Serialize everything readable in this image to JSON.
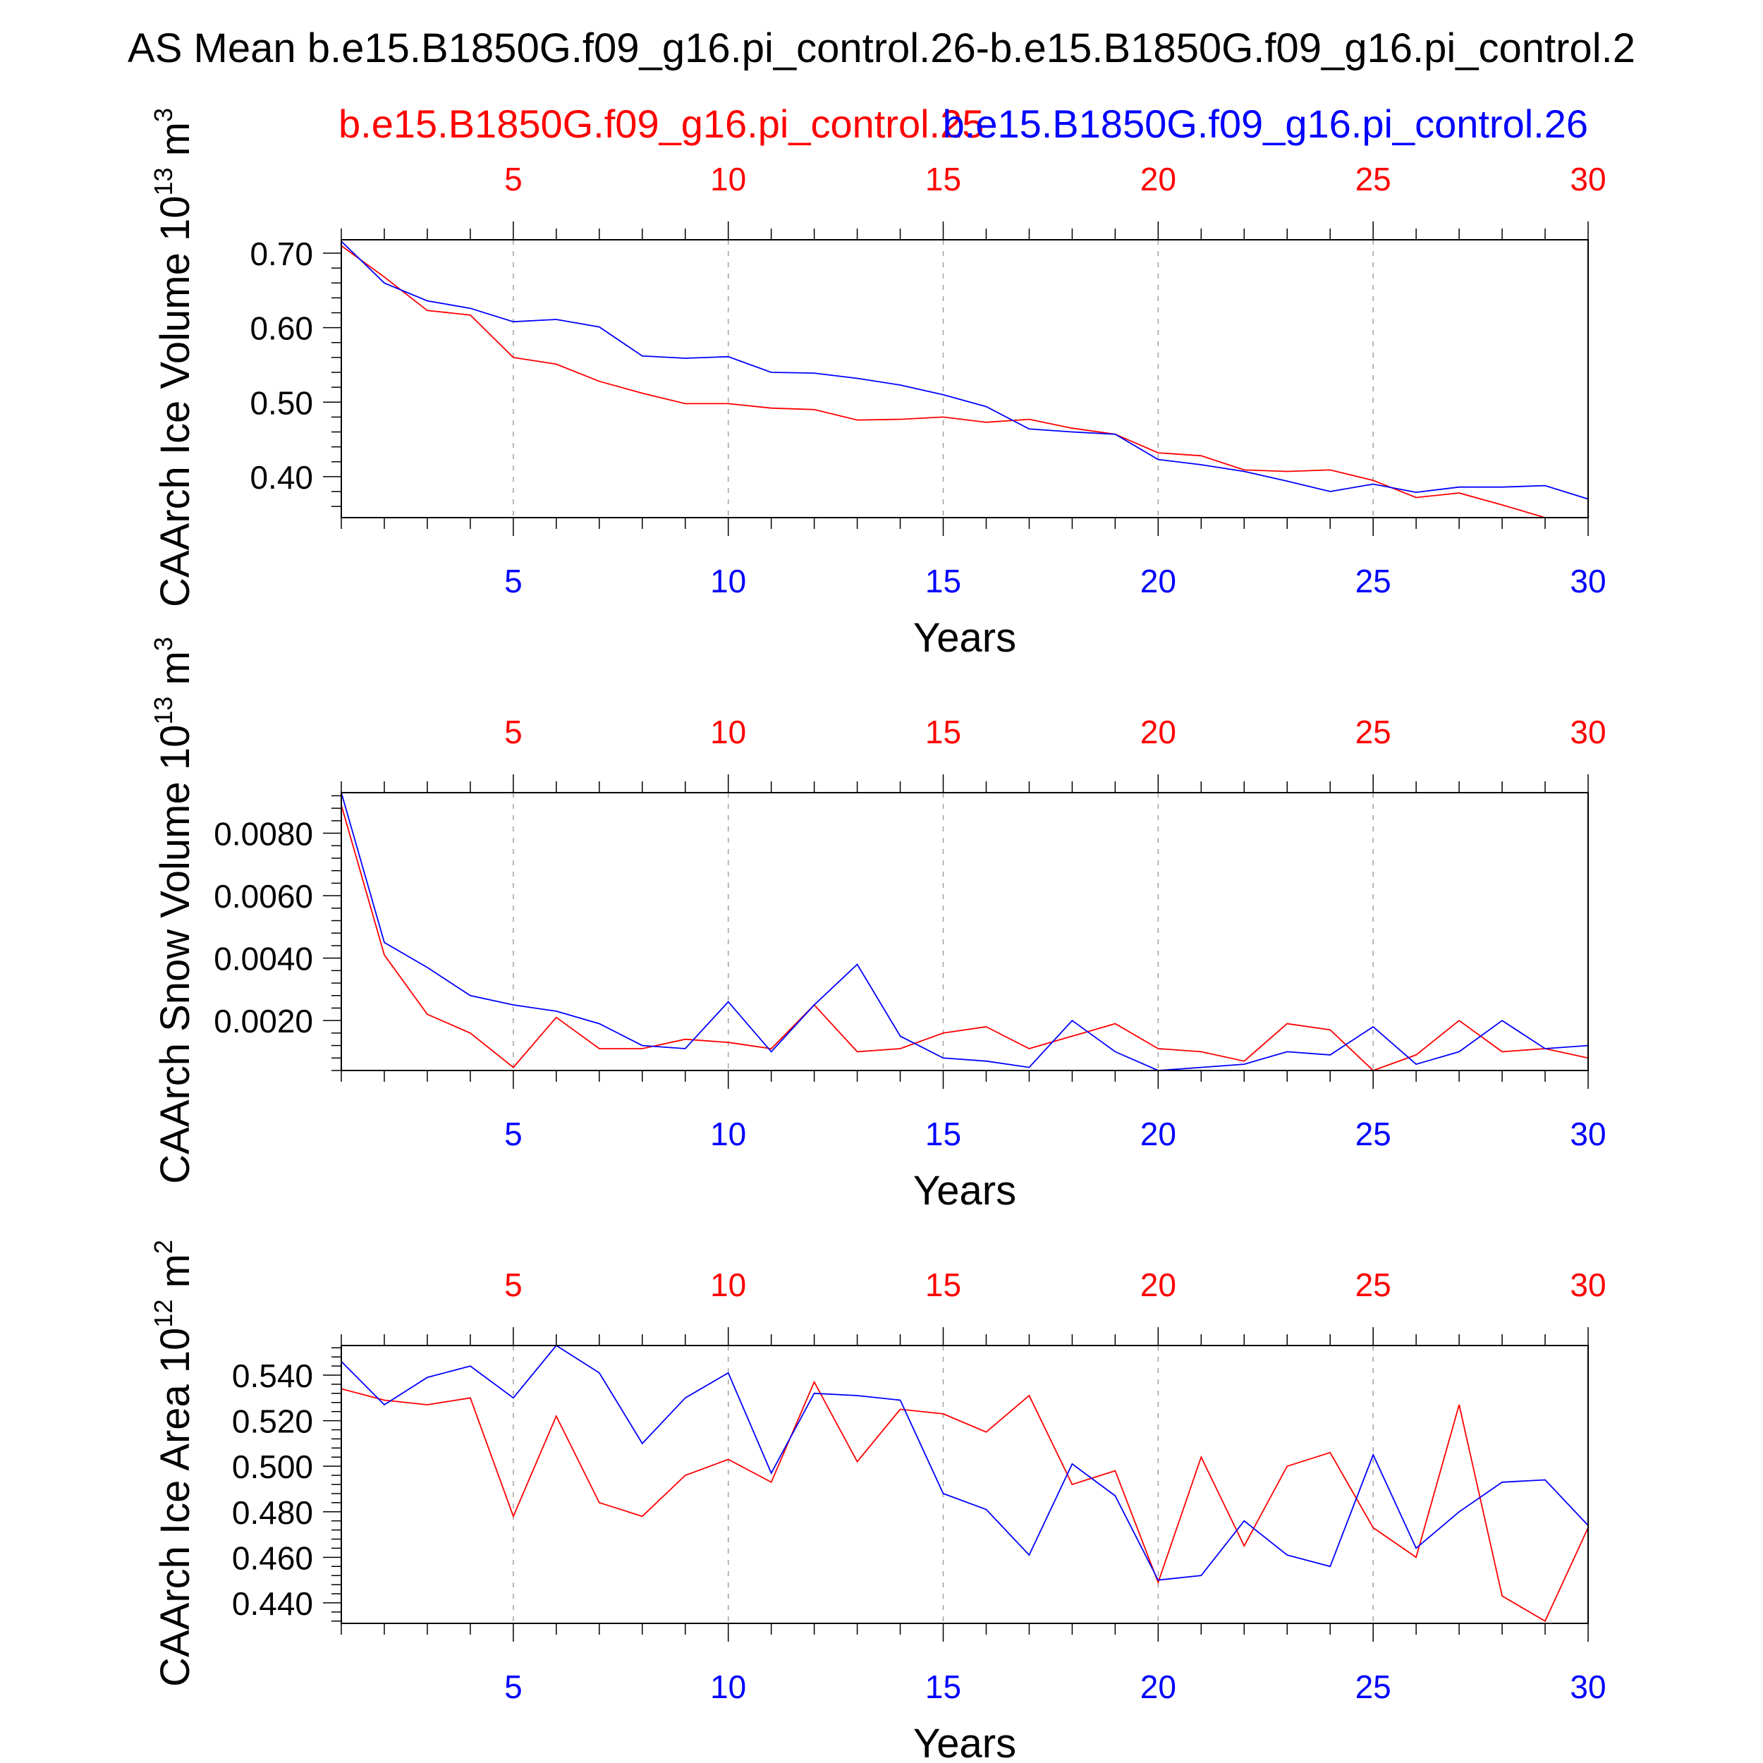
{
  "figure": {
    "title": "AS Mean b.e15.B1850G.f09_g16.pi_control.26-b.e15.B1850G.f09_g16.pi_control.2",
    "legend_red": "b.e15.B1850G.f09_g16.pi_control.25",
    "legend_blue": "b.e15.B1850G.f09_g16.pi_control.26"
  },
  "colors": {
    "red_series": "#ff0000",
    "blue_series": "#0000ff",
    "axes": "#000000",
    "grid": "#a0a0a0"
  },
  "chart_data": [
    {
      "type": "line",
      "ylabel_main": "CAArch Ice Volume 10",
      "ylabel_exp": "13",
      "ylabel_unit": " m",
      "ylabel_unit_exp": "3",
      "xlabel": "Years",
      "xlim": [
        1,
        30
      ],
      "ylim": [
        0.345,
        0.718
      ],
      "yticks": [
        0.4,
        0.5,
        0.6,
        0.7
      ],
      "ytick_labels": [
        "0.40",
        "0.50",
        "0.60",
        "0.70"
      ],
      "xticks": [
        5,
        10,
        15,
        20,
        25,
        30
      ],
      "xtick_labels": [
        "5",
        "10",
        "15",
        "20",
        "25",
        "30"
      ],
      "x": [
        1,
        2,
        3,
        4,
        5,
        6,
        7,
        8,
        9,
        10,
        11,
        12,
        13,
        14,
        15,
        16,
        17,
        18,
        19,
        20,
        21,
        22,
        23,
        24,
        25,
        26,
        27,
        28,
        29,
        30
      ],
      "series": [
        {
          "name": "b.e15.B1850G.f09_g16.pi_control.25",
          "color": "#ff0000",
          "values": [
            0.71,
            0.668,
            0.623,
            0.617,
            0.56,
            0.551,
            0.528,
            0.512,
            0.498,
            0.498,
            0.492,
            0.49,
            0.476,
            0.477,
            0.48,
            0.473,
            0.477,
            0.465,
            0.457,
            0.432,
            0.428,
            0.409,
            0.407,
            0.409,
            0.395,
            0.372,
            0.378,
            0.362,
            0.345,
            0.345
          ]
        },
        {
          "name": "b.e15.B1850G.f09_g16.pi_control.26",
          "color": "#0000ff",
          "values": [
            0.716,
            0.66,
            0.636,
            0.626,
            0.608,
            0.611,
            0.601,
            0.562,
            0.559,
            0.561,
            0.54,
            0.539,
            0.532,
            0.523,
            0.51,
            0.494,
            0.464,
            0.46,
            0.457,
            0.423,
            0.416,
            0.407,
            0.394,
            0.38,
            0.39,
            0.379,
            0.386,
            0.386,
            0.388,
            0.37
          ]
        }
      ]
    },
    {
      "type": "line",
      "ylabel_main": "CAArch Snow Volume 10",
      "ylabel_exp": "13",
      "ylabel_unit": " m",
      "ylabel_unit_exp": "3",
      "xlabel": "Years",
      "xlim": [
        1,
        30
      ],
      "ylim": [
        0.0004,
        0.0093
      ],
      "yticks": [
        0.002,
        0.004,
        0.006,
        0.008
      ],
      "ytick_labels": [
        "0.0020",
        "0.0040",
        "0.0060",
        "0.0080"
      ],
      "xticks": [
        5,
        10,
        15,
        20,
        25,
        30
      ],
      "xtick_labels": [
        "5",
        "10",
        "15",
        "20",
        "25",
        "30"
      ],
      "x": [
        1,
        2,
        3,
        4,
        5,
        6,
        7,
        8,
        9,
        10,
        11,
        12,
        13,
        14,
        15,
        16,
        17,
        18,
        19,
        20,
        21,
        22,
        23,
        24,
        25,
        26,
        27,
        28,
        29,
        30
      ],
      "series": [
        {
          "name": "b.e15.B1850G.f09_g16.pi_control.25",
          "color": "#ff0000",
          "values": [
            0.0089,
            0.0041,
            0.0022,
            0.0016,
            0.0005,
            0.0021,
            0.0011,
            0.0011,
            0.0014,
            0.0013,
            0.0011,
            0.0025,
            0.001,
            0.0011,
            0.0016,
            0.0018,
            0.0011,
            0.0015,
            0.0019,
            0.0011,
            0.001,
            0.0007,
            0.0019,
            0.0017,
            0.0004,
            0.0009,
            0.002,
            0.001,
            0.0011,
            0.0008
          ]
        },
        {
          "name": "b.e15.B1850G.f09_g16.pi_control.26",
          "color": "#0000ff",
          "values": [
            0.0093,
            0.0045,
            0.0037,
            0.0028,
            0.0025,
            0.0023,
            0.0019,
            0.0012,
            0.0011,
            0.0026,
            0.001,
            0.0025,
            0.0038,
            0.0015,
            0.0008,
            0.0007,
            0.0005,
            0.002,
            0.001,
            0.0004,
            0.0005,
            0.0006,
            0.001,
            0.0009,
            0.0018,
            0.0006,
            0.001,
            0.002,
            0.0011,
            0.0012
          ]
        }
      ]
    },
    {
      "type": "line",
      "ylabel_main": "CAArch Ice Area 10",
      "ylabel_exp": "12",
      "ylabel_unit": " m",
      "ylabel_unit_exp": "2",
      "xlabel": "Years",
      "xlim": [
        1,
        30
      ],
      "ylim": [
        0.431,
        0.553
      ],
      "yticks": [
        0.44,
        0.46,
        0.48,
        0.5,
        0.52,
        0.54
      ],
      "ytick_labels": [
        "0.440",
        "0.460",
        "0.480",
        "0.500",
        "0.520",
        "0.540"
      ],
      "xticks": [
        5,
        10,
        15,
        20,
        25,
        30
      ],
      "xtick_labels": [
        "5",
        "10",
        "15",
        "20",
        "25",
        "30"
      ],
      "x": [
        1,
        2,
        3,
        4,
        5,
        6,
        7,
        8,
        9,
        10,
        11,
        12,
        13,
        14,
        15,
        16,
        17,
        18,
        19,
        20,
        21,
        22,
        23,
        24,
        25,
        26,
        27,
        28,
        29,
        30
      ],
      "series": [
        {
          "name": "b.e15.B1850G.f09_g16.pi_control.25",
          "color": "#ff0000",
          "values": [
            0.534,
            0.529,
            0.527,
            0.53,
            0.478,
            0.522,
            0.484,
            0.478,
            0.496,
            0.503,
            0.493,
            0.537,
            0.502,
            0.525,
            0.523,
            0.515,
            0.531,
            0.492,
            0.498,
            0.449,
            0.504,
            0.465,
            0.5,
            0.506,
            0.473,
            0.46,
            0.527,
            0.443,
            0.432,
            0.473
          ]
        },
        {
          "name": "b.e15.B1850G.f09_g16.pi_control.26",
          "color": "#0000ff",
          "values": [
            0.546,
            0.527,
            0.539,
            0.544,
            0.53,
            0.553,
            0.541,
            0.51,
            0.53,
            0.541,
            0.497,
            0.532,
            0.531,
            0.529,
            0.488,
            0.481,
            0.461,
            0.501,
            0.487,
            0.45,
            0.452,
            0.476,
            0.461,
            0.456,
            0.505,
            0.464,
            0.48,
            0.493,
            0.494,
            0.474
          ]
        }
      ]
    }
  ]
}
